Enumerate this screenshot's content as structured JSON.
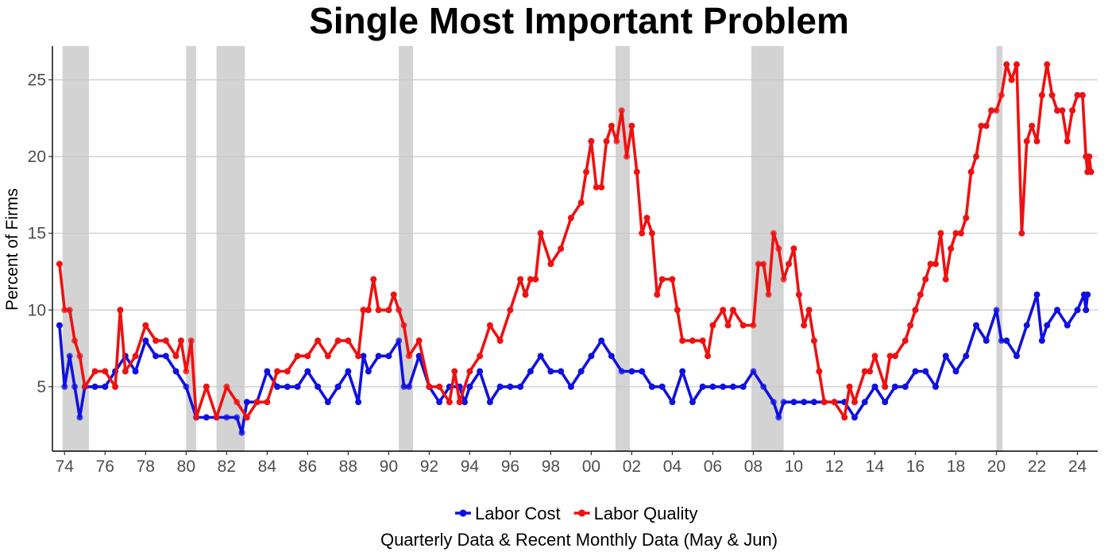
{
  "chart_data": {
    "type": "line",
    "title": "Single Most Important Problem",
    "ylabel": "Percent of Firms",
    "caption": "Quarterly Data & Recent Monthly Data (May & Jun)",
    "x_unit": "year",
    "xlim": [
      1973.4,
      2025.0
    ],
    "ylim": [
      0.8,
      27.2
    ],
    "x_ticks": [
      1974,
      1976,
      1978,
      1980,
      1982,
      1984,
      1986,
      1988,
      1990,
      1992,
      1994,
      1996,
      1998,
      2000,
      2002,
      2004,
      2006,
      2008,
      2010,
      2012,
      2014,
      2016,
      2018,
      2020,
      2022,
      2024
    ],
    "x_tick_labels": [
      "74",
      "76",
      "78",
      "80",
      "82",
      "84",
      "86",
      "88",
      "90",
      "92",
      "94",
      "96",
      "98",
      "00",
      "02",
      "04",
      "06",
      "08",
      "10",
      "12",
      "14",
      "16",
      "18",
      "20",
      "22",
      "24"
    ],
    "y_ticks": [
      5,
      10,
      15,
      20,
      25
    ],
    "grid": "horizontal",
    "legend_position": "bottom",
    "recessions": [
      [
        1973.9,
        1975.2
      ],
      [
        1980.0,
        1980.5
      ],
      [
        1981.5,
        1982.9
      ],
      [
        1990.5,
        1991.2
      ],
      [
        2001.2,
        2001.9
      ],
      [
        2007.9,
        2009.5
      ],
      [
        2020.0,
        2020.3
      ]
    ],
    "series": [
      {
        "name": "Labor Cost",
        "color": "#1010e0",
        "points": [
          [
            1973.75,
            9
          ],
          [
            1974,
            5
          ],
          [
            1974.25,
            7
          ],
          [
            1974.5,
            5
          ],
          [
            1974.75,
            3
          ],
          [
            1975,
            5
          ],
          [
            1975.5,
            5
          ],
          [
            1976,
            5
          ],
          [
            1976.5,
            6
          ],
          [
            1977,
            7
          ],
          [
            1977.5,
            6
          ],
          [
            1978,
            8
          ],
          [
            1978.5,
            7
          ],
          [
            1979,
            7
          ],
          [
            1979.5,
            6
          ],
          [
            1980,
            5
          ],
          [
            1980.5,
            3
          ],
          [
            1981,
            3
          ],
          [
            1981.5,
            3
          ],
          [
            1982,
            3
          ],
          [
            1982.5,
            3
          ],
          [
            1982.75,
            2
          ],
          [
            1983,
            4
          ],
          [
            1983.5,
            4
          ],
          [
            1984,
            6
          ],
          [
            1984.5,
            5
          ],
          [
            1985,
            5
          ],
          [
            1985.5,
            5
          ],
          [
            1986,
            6
          ],
          [
            1986.5,
            5
          ],
          [
            1987,
            4
          ],
          [
            1987.5,
            5
          ],
          [
            1988,
            6
          ],
          [
            1988.5,
            4
          ],
          [
            1988.75,
            7
          ],
          [
            1989,
            6
          ],
          [
            1989.5,
            7
          ],
          [
            1990,
            7
          ],
          [
            1990.5,
            8
          ],
          [
            1990.75,
            5
          ],
          [
            1991,
            5
          ],
          [
            1991.5,
            7
          ],
          [
            1992,
            5
          ],
          [
            1992.5,
            4
          ],
          [
            1993,
            5
          ],
          [
            1993.5,
            5
          ],
          [
            1993.75,
            4
          ],
          [
            1994,
            5
          ],
          [
            1994.5,
            6
          ],
          [
            1995,
            4
          ],
          [
            1995.5,
            5
          ],
          [
            1996,
            5
          ],
          [
            1996.5,
            5
          ],
          [
            1997,
            6
          ],
          [
            1997.5,
            7
          ],
          [
            1998,
            6
          ],
          [
            1998.5,
            6
          ],
          [
            1999,
            5
          ],
          [
            1999.5,
            6
          ],
          [
            2000,
            7
          ],
          [
            2000.5,
            8
          ],
          [
            2001,
            7
          ],
          [
            2001.5,
            6
          ],
          [
            2002,
            6
          ],
          [
            2002.5,
            6
          ],
          [
            2003,
            5
          ],
          [
            2003.5,
            5
          ],
          [
            2004,
            4
          ],
          [
            2004.5,
            6
          ],
          [
            2005,
            4
          ],
          [
            2005.5,
            5
          ],
          [
            2006,
            5
          ],
          [
            2006.5,
            5
          ],
          [
            2007,
            5
          ],
          [
            2007.5,
            5
          ],
          [
            2008,
            6
          ],
          [
            2008.5,
            5
          ],
          [
            2009,
            4
          ],
          [
            2009.25,
            3
          ],
          [
            2009.5,
            4
          ],
          [
            2010,
            4
          ],
          [
            2010.5,
            4
          ],
          [
            2011,
            4
          ],
          [
            2011.5,
            4
          ],
          [
            2012,
            4
          ],
          [
            2012.5,
            4
          ],
          [
            2013,
            3
          ],
          [
            2013.5,
            4
          ],
          [
            2014,
            5
          ],
          [
            2014.5,
            4
          ],
          [
            2015,
            5
          ],
          [
            2015.5,
            5
          ],
          [
            2016,
            6
          ],
          [
            2016.5,
            6
          ],
          [
            2017,
            5
          ],
          [
            2017.5,
            7
          ],
          [
            2018,
            6
          ],
          [
            2018.5,
            7
          ],
          [
            2019,
            9
          ],
          [
            2019.5,
            8
          ],
          [
            2020,
            10
          ],
          [
            2020.25,
            8
          ],
          [
            2020.5,
            8
          ],
          [
            2021,
            7
          ],
          [
            2021.5,
            9
          ],
          [
            2022,
            11
          ],
          [
            2022.25,
            8
          ],
          [
            2022.5,
            9
          ],
          [
            2023,
            10
          ],
          [
            2023.5,
            9
          ],
          [
            2024,
            10
          ],
          [
            2024.33,
            11
          ],
          [
            2024.42,
            10
          ],
          [
            2024.5,
            11
          ]
        ]
      },
      {
        "name": "Labor Quality",
        "color": "#ee1111",
        "points": [
          [
            1973.75,
            13
          ],
          [
            1974,
            10
          ],
          [
            1974.25,
            10
          ],
          [
            1974.5,
            8
          ],
          [
            1974.75,
            7
          ],
          [
            1975,
            5
          ],
          [
            1975.5,
            6
          ],
          [
            1976,
            6
          ],
          [
            1976.5,
            5
          ],
          [
            1976.75,
            10
          ],
          [
            1977,
            6
          ],
          [
            1977.5,
            7
          ],
          [
            1978,
            9
          ],
          [
            1978.5,
            8
          ],
          [
            1979,
            8
          ],
          [
            1979.5,
            7
          ],
          [
            1979.75,
            8
          ],
          [
            1980,
            6
          ],
          [
            1980.25,
            8
          ],
          [
            1980.5,
            3
          ],
          [
            1981,
            5
          ],
          [
            1981.5,
            3
          ],
          [
            1982,
            5
          ],
          [
            1982.5,
            4
          ],
          [
            1983,
            3
          ],
          [
            1983.5,
            4
          ],
          [
            1984,
            4
          ],
          [
            1984.5,
            6
          ],
          [
            1985,
            6
          ],
          [
            1985.5,
            7
          ],
          [
            1986,
            7
          ],
          [
            1986.5,
            8
          ],
          [
            1987,
            7
          ],
          [
            1987.5,
            8
          ],
          [
            1988,
            8
          ],
          [
            1988.5,
            7
          ],
          [
            1988.75,
            10
          ],
          [
            1989,
            10
          ],
          [
            1989.25,
            12
          ],
          [
            1989.5,
            10
          ],
          [
            1990,
            10
          ],
          [
            1990.25,
            11
          ],
          [
            1990.5,
            10
          ],
          [
            1990.75,
            9
          ],
          [
            1991,
            7
          ],
          [
            1991.5,
            8
          ],
          [
            1992,
            5
          ],
          [
            1992.5,
            5
          ],
          [
            1993,
            4
          ],
          [
            1993.25,
            6
          ],
          [
            1993.5,
            4
          ],
          [
            1994,
            6
          ],
          [
            1994.5,
            7
          ],
          [
            1995,
            9
          ],
          [
            1995.5,
            8
          ],
          [
            1996,
            10
          ],
          [
            1996.5,
            12
          ],
          [
            1996.75,
            11
          ],
          [
            1997,
            12
          ],
          [
            1997.25,
            12
          ],
          [
            1997.5,
            15
          ],
          [
            1998,
            13
          ],
          [
            1998.5,
            14
          ],
          [
            1999,
            16
          ],
          [
            1999.5,
            17
          ],
          [
            1999.75,
            19
          ],
          [
            2000,
            21
          ],
          [
            2000.25,
            18
          ],
          [
            2000.5,
            18
          ],
          [
            2000.75,
            21
          ],
          [
            2001,
            22
          ],
          [
            2001.25,
            21
          ],
          [
            2001.5,
            23
          ],
          [
            2001.75,
            20
          ],
          [
            2002,
            22
          ],
          [
            2002.25,
            19
          ],
          [
            2002.5,
            15
          ],
          [
            2002.75,
            16
          ],
          [
            2003,
            15
          ],
          [
            2003.25,
            11
          ],
          [
            2003.5,
            12
          ],
          [
            2004,
            12
          ],
          [
            2004.25,
            10
          ],
          [
            2004.5,
            8
          ],
          [
            2005,
            8
          ],
          [
            2005.5,
            8
          ],
          [
            2005.75,
            7
          ],
          [
            2006,
            9
          ],
          [
            2006.5,
            10
          ],
          [
            2006.75,
            9
          ],
          [
            2007,
            10
          ],
          [
            2007.5,
            9
          ],
          [
            2008,
            9
          ],
          [
            2008.25,
            13
          ],
          [
            2008.5,
            13
          ],
          [
            2008.75,
            11
          ],
          [
            2009,
            15
          ],
          [
            2009.25,
            14
          ],
          [
            2009.5,
            12
          ],
          [
            2009.75,
            13
          ],
          [
            2010,
            14
          ],
          [
            2010.25,
            11
          ],
          [
            2010.5,
            9
          ],
          [
            2010.75,
            10
          ],
          [
            2011,
            8
          ],
          [
            2011.25,
            6
          ],
          [
            2011.5,
            4
          ],
          [
            2012,
            4
          ],
          [
            2012.5,
            3
          ],
          [
            2012.75,
            5
          ],
          [
            2013,
            4
          ],
          [
            2013.5,
            6
          ],
          [
            2013.75,
            6
          ],
          [
            2014,
            7
          ],
          [
            2014.5,
            5
          ],
          [
            2014.75,
            7
          ],
          [
            2015,
            7
          ],
          [
            2015.5,
            8
          ],
          [
            2015.75,
            9
          ],
          [
            2016,
            10
          ],
          [
            2016.25,
            11
          ],
          [
            2016.5,
            12
          ],
          [
            2016.75,
            13
          ],
          [
            2017,
            13
          ],
          [
            2017.25,
            15
          ],
          [
            2017.5,
            12
          ],
          [
            2017.75,
            14
          ],
          [
            2018,
            15
          ],
          [
            2018.25,
            15
          ],
          [
            2018.5,
            16
          ],
          [
            2018.75,
            19
          ],
          [
            2019,
            20
          ],
          [
            2019.25,
            22
          ],
          [
            2019.5,
            22
          ],
          [
            2019.75,
            23
          ],
          [
            2020,
            23
          ],
          [
            2020.25,
            24
          ],
          [
            2020.5,
            26
          ],
          [
            2020.75,
            25
          ],
          [
            2021,
            26
          ],
          [
            2021.25,
            15
          ],
          [
            2021.5,
            21
          ],
          [
            2021.75,
            22
          ],
          [
            2022,
            21
          ],
          [
            2022.25,
            24
          ],
          [
            2022.5,
            26
          ],
          [
            2022.75,
            24
          ],
          [
            2023,
            23
          ],
          [
            2023.25,
            23
          ],
          [
            2023.5,
            21
          ],
          [
            2023.75,
            23
          ],
          [
            2024,
            24
          ],
          [
            2024.25,
            24
          ],
          [
            2024.42,
            20
          ],
          [
            2024.5,
            19
          ],
          [
            2024.58,
            20
          ],
          [
            2024.67,
            19
          ]
        ]
      }
    ]
  }
}
